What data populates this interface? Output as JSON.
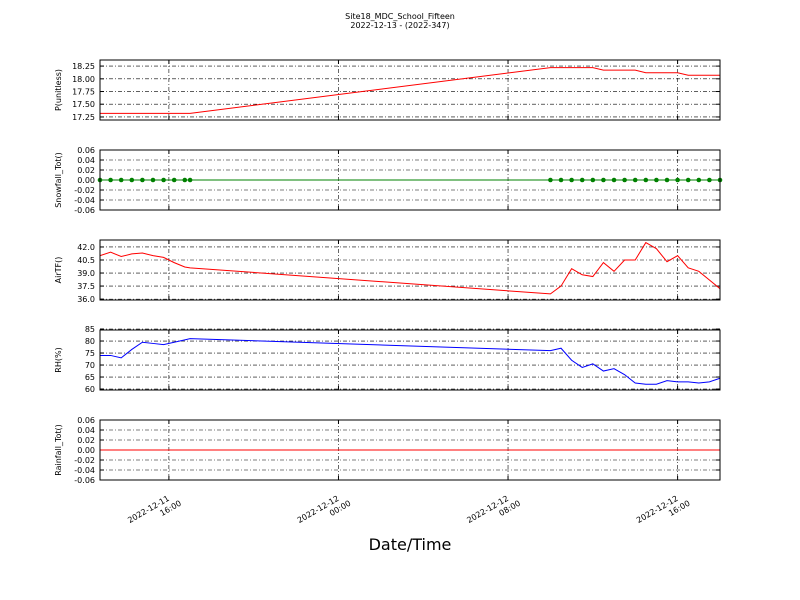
{
  "chart_data": [
    {
      "type": "line",
      "title": "Site18_MDC_School_Fifteen",
      "subtitle": "2022-12-13 - (2022-347)",
      "ylabel": "P(unitless)",
      "x": [
        "2022-12-11 12:45",
        "2022-12-11 13:15",
        "2022-12-11 13:45",
        "2022-12-11 14:15",
        "2022-12-11 14:45",
        "2022-12-11 15:15",
        "2022-12-11 15:45",
        "2022-12-11 16:15",
        "2022-12-11 16:45",
        "2022-12-11 17:00",
        "2022-12-12 10:00",
        "2022-12-12 10:30",
        "2022-12-12 11:00",
        "2022-12-12 11:30",
        "2022-12-12 12:00",
        "2022-12-12 12:30",
        "2022-12-12 13:00",
        "2022-12-12 13:30",
        "2022-12-12 14:00",
        "2022-12-12 14:30",
        "2022-12-12 15:00",
        "2022-12-12 15:30",
        "2022-12-12 16:00",
        "2022-12-12 16:30",
        "2022-12-12 17:00",
        "2022-12-12 17:30",
        "2022-12-12 18:00"
      ],
      "values": [
        17.32,
        17.32,
        17.32,
        17.32,
        17.32,
        17.32,
        17.32,
        17.32,
        17.32,
        17.32,
        18.22,
        18.22,
        18.22,
        18.22,
        18.22,
        18.17,
        18.17,
        18.17,
        18.17,
        18.12,
        18.12,
        18.12,
        18.12,
        18.07,
        18.07,
        18.07,
        18.07
      ],
      "color": "#ff0000",
      "markers": false,
      "ylim": [
        17.19,
        18.37
      ],
      "yticks": [
        17.25,
        {
          "value": 17.5,
          "label": "17.50"
        },
        17.75,
        {
          "value": 18,
          "label": "18.00"
        },
        18.25
      ],
      "grid": true
    },
    {
      "type": "line",
      "ylabel": "Snowfall_Tot()",
      "x": [
        "2022-12-11 12:45",
        "2022-12-11 13:15",
        "2022-12-11 13:45",
        "2022-12-11 14:15",
        "2022-12-11 14:45",
        "2022-12-11 15:15",
        "2022-12-11 15:45",
        "2022-12-11 16:15",
        "2022-12-11 16:45",
        "2022-12-11 17:00",
        "2022-12-12 10:00",
        "2022-12-12 10:30",
        "2022-12-12 11:00",
        "2022-12-12 11:30",
        "2022-12-12 12:00",
        "2022-12-12 12:30",
        "2022-12-12 13:00",
        "2022-12-12 13:30",
        "2022-12-12 14:00",
        "2022-12-12 14:30",
        "2022-12-12 15:00",
        "2022-12-12 15:30",
        "2022-12-12 16:00",
        "2022-12-12 16:30",
        "2022-12-12 17:00",
        "2022-12-12 17:30",
        "2022-12-12 18:00"
      ],
      "values": [
        0,
        0,
        0,
        0,
        0,
        0,
        0,
        0,
        0,
        0,
        0,
        0,
        0,
        0,
        0,
        0,
        0,
        0,
        0,
        0,
        0,
        0,
        0,
        0,
        0,
        0,
        0
      ],
      "color": "#008000",
      "markers": true,
      "ylim": [
        -0.06,
        0.06
      ],
      "yticks": [
        -0.06,
        -0.04,
        -0.02,
        {
          "value": 0,
          "label": "0.00"
        },
        0.02,
        0.04,
        0.06
      ],
      "grid": true
    },
    {
      "type": "line",
      "ylabel": "AirTF()",
      "x": [
        "2022-12-11 12:45",
        "2022-12-11 13:15",
        "2022-12-11 13:45",
        "2022-12-11 14:15",
        "2022-12-11 14:45",
        "2022-12-11 15:15",
        "2022-12-11 15:45",
        "2022-12-11 16:15",
        "2022-12-11 16:45",
        "2022-12-11 17:00",
        "2022-12-12 10:00",
        "2022-12-12 10:30",
        "2022-12-12 11:00",
        "2022-12-12 11:30",
        "2022-12-12 12:00",
        "2022-12-12 12:30",
        "2022-12-12 13:00",
        "2022-12-12 13:30",
        "2022-12-12 14:00",
        "2022-12-12 14:30",
        "2022-12-12 15:00",
        "2022-12-12 15:30",
        "2022-12-12 16:00",
        "2022-12-12 16:30",
        "2022-12-12 17:00",
        "2022-12-12 17:30",
        "2022-12-12 18:00"
      ],
      "values": [
        41.0,
        41.4,
        40.9,
        41.2,
        41.3,
        41.0,
        40.8,
        40.2,
        39.7,
        39.6,
        36.6,
        37.5,
        39.5,
        38.8,
        38.6,
        40.2,
        39.2,
        40.5,
        40.5,
        42.5,
        41.8,
        40.3,
        41.0,
        39.6,
        39.2,
        38.2,
        37.2
      ],
      "color": "#ff0000",
      "markers": false,
      "ylim": [
        35.9,
        42.8
      ],
      "yticks": [
        {
          "value": 36,
          "label": "36.0"
        },
        37.5,
        {
          "value": 39,
          "label": "39.0"
        },
        40.5,
        {
          "value": 42,
          "label": "42.0"
        }
      ],
      "grid": true
    },
    {
      "type": "line",
      "ylabel": "RH(%)",
      "x": [
        "2022-12-11 12:45",
        "2022-12-11 13:15",
        "2022-12-11 13:45",
        "2022-12-11 14:15",
        "2022-12-11 14:45",
        "2022-12-11 15:15",
        "2022-12-11 15:45",
        "2022-12-11 16:15",
        "2022-12-11 16:45",
        "2022-12-11 17:00",
        "2022-12-12 10:00",
        "2022-12-12 10:30",
        "2022-12-12 11:00",
        "2022-12-12 11:30",
        "2022-12-12 12:00",
        "2022-12-12 12:30",
        "2022-12-12 13:00",
        "2022-12-12 13:30",
        "2022-12-12 14:00",
        "2022-12-12 14:30",
        "2022-12-12 15:00",
        "2022-12-12 15:30",
        "2022-12-12 16:00",
        "2022-12-12 16:30",
        "2022-12-12 17:00",
        "2022-12-12 17:30",
        "2022-12-12 18:00"
      ],
      "values": [
        74,
        74,
        73,
        76.5,
        79.5,
        79,
        78.5,
        79.5,
        80.5,
        81,
        76,
        77,
        72,
        69,
        70.5,
        67.5,
        68.5,
        66,
        62.5,
        62,
        62,
        63.5,
        63,
        63,
        62.5,
        63,
        64.5
      ],
      "color": "#0000ff",
      "markers": false,
      "ylim": [
        59.6,
        84.6
      ],
      "yticks": [
        60,
        65,
        70,
        75,
        80,
        85
      ],
      "grid": true
    },
    {
      "type": "line",
      "ylabel": "Rainfall_Tot()",
      "xlabel": "Date/Time",
      "x": [
        "2022-12-11 12:45",
        "2022-12-11 13:15",
        "2022-12-11 13:45",
        "2022-12-11 14:15",
        "2022-12-11 14:45",
        "2022-12-11 15:15",
        "2022-12-11 15:45",
        "2022-12-11 16:15",
        "2022-12-11 16:45",
        "2022-12-11 17:00",
        "2022-12-12 10:00",
        "2022-12-12 10:30",
        "2022-12-12 11:00",
        "2022-12-12 11:30",
        "2022-12-12 12:00",
        "2022-12-12 12:30",
        "2022-12-12 13:00",
        "2022-12-12 13:30",
        "2022-12-12 14:00",
        "2022-12-12 14:30",
        "2022-12-12 15:00",
        "2022-12-12 15:30",
        "2022-12-12 16:00",
        "2022-12-12 16:30",
        "2022-12-12 17:00",
        "2022-12-12 17:30",
        "2022-12-12 18:00"
      ],
      "values": [
        0,
        0,
        0,
        0,
        0,
        0,
        0,
        0,
        0,
        0,
        0,
        0,
        0,
        0,
        0,
        0,
        0,
        0,
        0,
        0,
        0,
        0,
        0,
        0,
        0,
        0,
        0
      ],
      "color": "#ff0000",
      "markers": false,
      "ylim": [
        -0.06,
        0.06
      ],
      "yticks": [
        -0.06,
        -0.04,
        -0.02,
        {
          "value": 0,
          "label": "0.00"
        },
        0.02,
        0.04,
        0.06
      ],
      "grid": true,
      "xlim": [
        "2022-12-11 12:45",
        "2022-12-12 18:00"
      ],
      "xticks": [
        "2022-12-11 16:00",
        "2022-12-12 00:00",
        "2022-12-12 08:00",
        "2022-12-12 16:00"
      ]
    }
  ]
}
